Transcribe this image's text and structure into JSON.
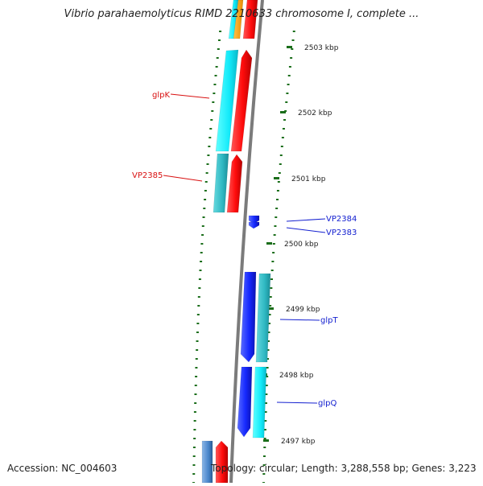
{
  "title": "Vibrio parahaemolyticus RIMD 2210633 chromosome I, complete ...",
  "footer": {
    "accession": "Accession: NC_004603",
    "topology": "Topology: circular; Length: 3,288,558 bp; Genes: 3,223"
  },
  "colors": {
    "forward_strand": "#ff1010",
    "forward_rna": "#18b7b7",
    "reverse_strand": "#1a2cff",
    "cyan_gene": "#12ebfa",
    "teal_gene": "#2fb8c2",
    "backbone": "#7b7b7b",
    "tick": "#1b6e1b",
    "label_red": "#d81010",
    "label_blue": "#1420d0"
  },
  "ruler": [
    {
      "label": "2503 kbp"
    },
    {
      "label": "2502 kbp"
    },
    {
      "label": "2501 kbp"
    },
    {
      "label": "2500 kbp"
    },
    {
      "label": "2499 kbp"
    },
    {
      "label": "2498 kbp"
    },
    {
      "label": "2497 kbp"
    }
  ],
  "gene_labels": [
    {
      "name": "glpK",
      "strand": "forward"
    },
    {
      "name": "VP2385",
      "strand": "forward"
    },
    {
      "name": "VP2384",
      "strand": "reverse"
    },
    {
      "name": "VP2383",
      "strand": "reverse"
    },
    {
      "name": "glpT",
      "strand": "reverse"
    },
    {
      "name": "glpQ",
      "strand": "reverse"
    }
  ]
}
